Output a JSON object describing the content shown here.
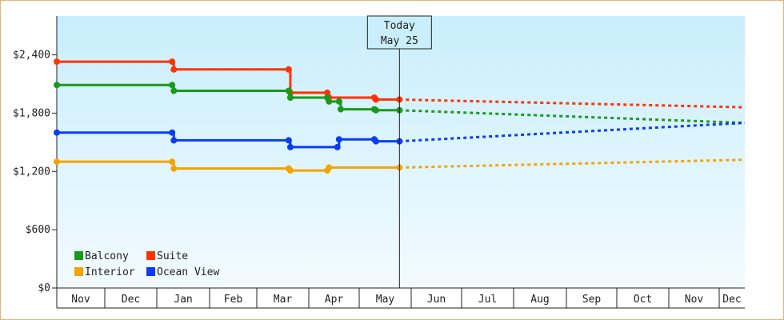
{
  "chart_data": {
    "type": "line",
    "title": "",
    "xlabel": "",
    "ylabel": "",
    "ylim": [
      0,
      2800
    ],
    "yticks": [
      {
        "value": 0,
        "label": "$0"
      },
      {
        "value": 600,
        "label": "$600"
      },
      {
        "value": 1200,
        "label": "$1,200"
      },
      {
        "value": 1800,
        "label": "$1,800"
      },
      {
        "value": 2400,
        "label": "$2,400"
      }
    ],
    "xlim": [
      "Nov 1",
      "Dec 31"
    ],
    "x_ticks": [
      "Nov",
      "Dec",
      "Jan",
      "Feb",
      "Mar",
      "Apr",
      "May",
      "Jun",
      "Jul",
      "Aug",
      "Sep",
      "Oct",
      "Nov",
      "Dec"
    ],
    "grid": false,
    "step_lines": true,
    "background": {
      "top": "#c9eefc",
      "bottom": "#f2fbff"
    },
    "today": {
      "line1": "Today",
      "line2": "May 25",
      "x": "May 25"
    },
    "legend_position": "bottom-left",
    "legend": [
      {
        "label": "Balcony",
        "color": "#1a9a1a"
      },
      {
        "label": "Suite",
        "color": "#ff3300"
      },
      {
        "label": "Interior",
        "color": "#f5a300"
      },
      {
        "label": "Ocean View",
        "color": "#0b3cf5"
      }
    ],
    "series": [
      {
        "name": "Suite",
        "color": "#ff3300",
        "points": [
          [
            "Nov 1",
            2330
          ],
          [
            "Jan 10",
            2330
          ],
          [
            "Jan 11",
            2250
          ],
          [
            "Mar 20",
            2250
          ],
          [
            "Mar 21",
            2010
          ],
          [
            "Apr 12",
            2010
          ],
          [
            "Apr 13",
            1960
          ],
          [
            "May 10",
            1960
          ],
          [
            "May 11",
            1940
          ],
          [
            "May 25",
            1940
          ]
        ],
        "forecast": [
          [
            "May 25",
            1940
          ],
          [
            "Dec 31",
            1860
          ]
        ]
      },
      {
        "name": "Balcony",
        "color": "#1a9a1a",
        "points": [
          [
            "Nov 1",
            2090
          ],
          [
            "Jan 10",
            2090
          ],
          [
            "Jan 11",
            2030
          ],
          [
            "Mar 20",
            2030
          ],
          [
            "Mar 21",
            1960
          ],
          [
            "Apr 12",
            1960
          ],
          [
            "Apr 13",
            1920
          ],
          [
            "Apr 19",
            1920
          ],
          [
            "Apr 20",
            1840
          ],
          [
            "May 10",
            1840
          ],
          [
            "May 11",
            1830
          ],
          [
            "May 25",
            1830
          ]
        ],
        "forecast": [
          [
            "May 25",
            1830
          ],
          [
            "Dec 31",
            1700
          ]
        ]
      },
      {
        "name": "Ocean View",
        "color": "#0b3cf5",
        "points": [
          [
            "Nov 1",
            1600
          ],
          [
            "Jan 10",
            1600
          ],
          [
            "Jan 11",
            1520
          ],
          [
            "Mar 20",
            1520
          ],
          [
            "Mar 21",
            1450
          ],
          [
            "Apr 18",
            1450
          ],
          [
            "Apr 19",
            1530
          ],
          [
            "May 10",
            1530
          ],
          [
            "May 11",
            1510
          ],
          [
            "May 25",
            1510
          ]
        ],
        "forecast": [
          [
            "May 25",
            1510
          ],
          [
            "Dec 31",
            1700
          ]
        ]
      },
      {
        "name": "Interior",
        "color": "#f5a300",
        "points": [
          [
            "Nov 1",
            1300
          ],
          [
            "Jan 10",
            1300
          ],
          [
            "Jan 11",
            1230
          ],
          [
            "Mar 20",
            1230
          ],
          [
            "Mar 21",
            1210
          ],
          [
            "Apr 12",
            1210
          ],
          [
            "Apr 13",
            1240
          ],
          [
            "May 25",
            1240
          ]
        ],
        "forecast": [
          [
            "May 25",
            1240
          ],
          [
            "Dec 31",
            1320
          ]
        ]
      }
    ]
  }
}
